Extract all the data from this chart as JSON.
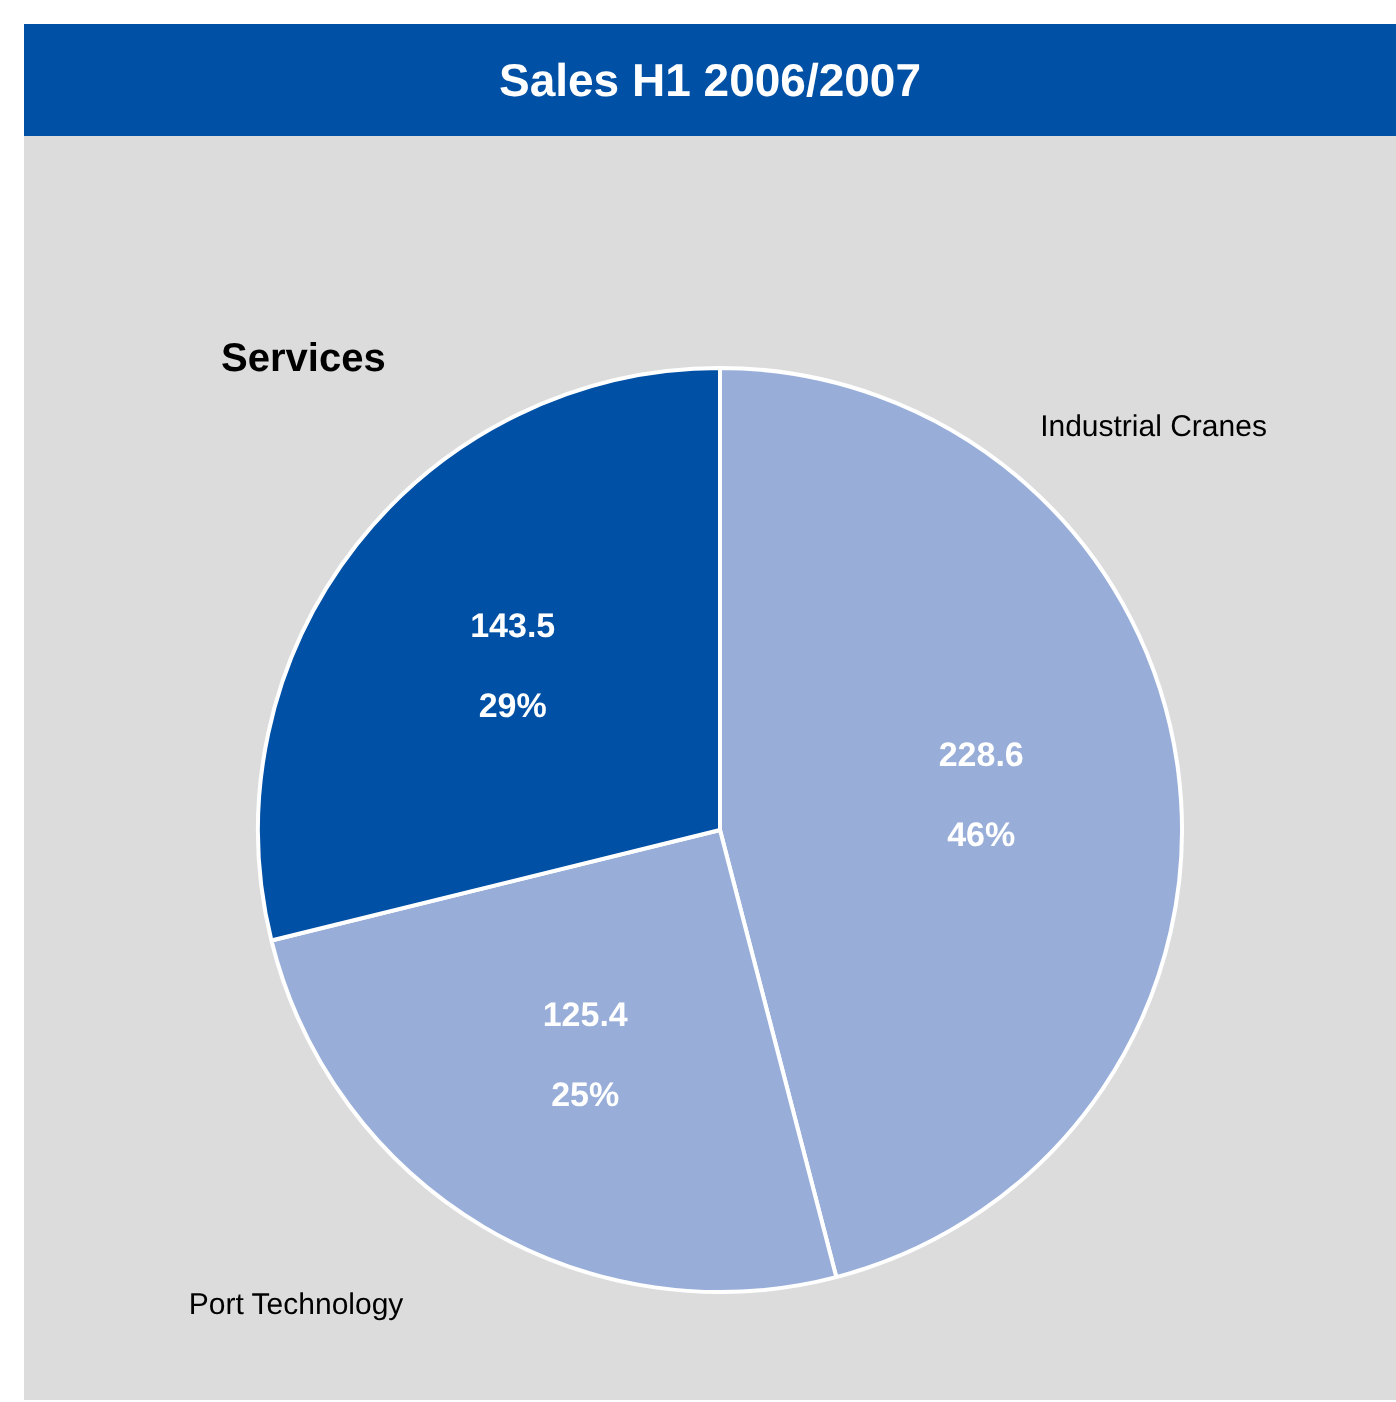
{
  "chart_data": {
    "type": "pie",
    "title": "Sales H1 2006/2007",
    "categories": [
      "Industrial Cranes",
      "Port Technology",
      "Services"
    ],
    "values": [
      228.6,
      125.4,
      143.5
    ],
    "colors": [
      "#98aed9",
      "#98aed9",
      "#0050a5"
    ],
    "data_labels": true,
    "annotations": [
      "46%",
      "25%",
      "29%"
    ]
  }
}
